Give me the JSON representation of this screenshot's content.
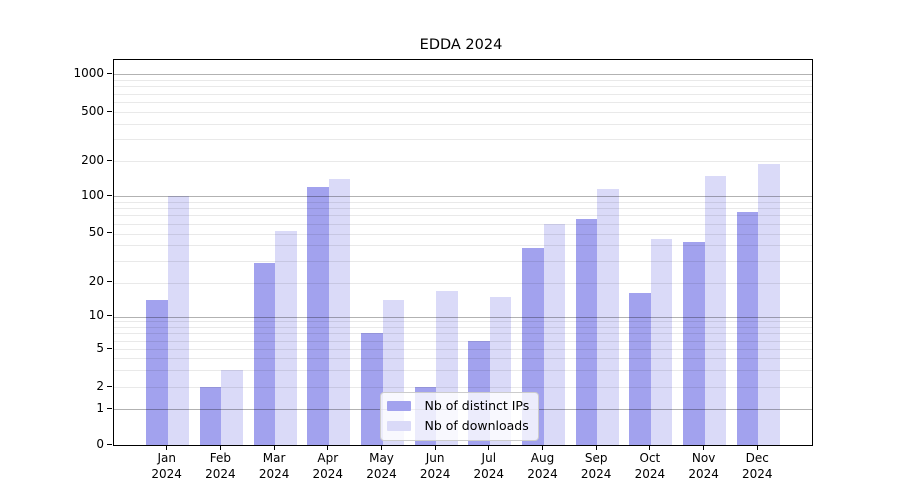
{
  "title": "EDDA 2024",
  "chart_data": {
    "type": "bar",
    "title": "EDDA 2024",
    "months": [
      "Jan",
      "Feb",
      "Mar",
      "Apr",
      "May",
      "Jun",
      "Jul",
      "Aug",
      "Sep",
      "Oct",
      "Nov",
      "Dec"
    ],
    "year_label": "2024",
    "series": [
      {
        "name": "Nb of distinct IPs",
        "color": "#a2a2ee",
        "values": [
          14,
          2,
          29,
          120,
          7,
          2,
          6,
          38,
          65,
          16,
          43,
          75
        ]
      },
      {
        "name": "Nb of downloads",
        "color": "#dadaf8",
        "values": [
          100,
          3,
          52,
          140,
          14,
          17,
          15,
          60,
          115,
          45,
          150,
          190
        ]
      }
    ],
    "ylabel": "",
    "xlabel": "",
    "yscale": "symlog",
    "ytick_values": [
      0,
      1,
      2,
      5,
      10,
      20,
      50,
      100,
      200,
      500,
      1000
    ],
    "ytick_labels": [
      "0",
      "1",
      "2",
      "5",
      "10",
      "20",
      "50",
      "100",
      "200",
      "500",
      "1000"
    ],
    "ylim": [
      0,
      1300
    ],
    "grid": "horizontal major+minor",
    "legend": {
      "position": "lower center",
      "entries": [
        "Nb of distinct IPs",
        "Nb of downloads"
      ]
    },
    "colors": {
      "major_grid": "#b5b5b5",
      "minor_grid": "#e9e9e9",
      "axis": "#000000"
    }
  }
}
